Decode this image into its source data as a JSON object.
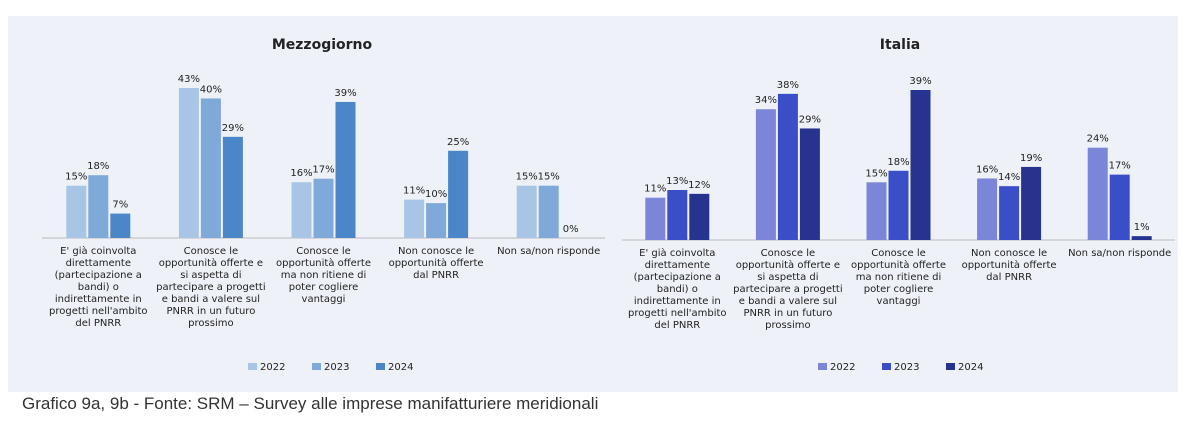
{
  "chart_data": [
    {
      "type": "bar",
      "title": "Mezzogiorno",
      "categories": [
        "E' già coinvolta direttamente (partecipazione a bandi) o indirettamente in progetti nell'ambito del PNRR",
        "Conosce le opportunità offerte e si aspetta di partecipare a progetti e bandi a valere sul PNRR in un futuro prossimo",
        "Conosce le opportunità offerte ma non ritiene di poter cogliere vantaggi",
        "Non conosce le opportunità offerte dal PNRR",
        "Non sa/non risponde"
      ],
      "series": [
        {
          "name": "2022",
          "color": "#a9c5e6",
          "values": [
            15,
            43,
            16,
            11,
            15
          ],
          "value_labels": [
            "15%",
            "43%",
            "16%",
            "11%",
            "15%"
          ]
        },
        {
          "name": "2023",
          "color": "#7ea9d9",
          "values": [
            18,
            40,
            17,
            10,
            15
          ],
          "value_labels": [
            "18%",
            "40%",
            "17%",
            "10%",
            "15%"
          ]
        },
        {
          "name": "2024",
          "color": "#4a86c8",
          "values": [
            7,
            29,
            39,
            25,
            0
          ],
          "value_labels": [
            "7%",
            "29%",
            "39%",
            "25%",
            "0%"
          ]
        }
      ]
    },
    {
      "type": "bar",
      "title": "Italia",
      "categories": [
        "E' già coinvolta direttamente (partecipazione a bandi) o indirettamente in progetti nell'ambito del PNRR",
        "Conosce le opportunità offerte e si aspetta di partecipare a progetti e bandi a valere sul PNRR in un futuro prossimo",
        "Conosce le opportunità offerte ma non ritiene di poter cogliere vantaggi",
        "Non conosce le opportunità offerte dal PNRR",
        "Non sa/non risponde"
      ],
      "series": [
        {
          "name": "2022",
          "color": "#7b86d9",
          "values": [
            11,
            34,
            15,
            16,
            24
          ],
          "value_labels": [
            "11%",
            "34%",
            "15%",
            "16%",
            "24%"
          ]
        },
        {
          "name": "2023",
          "color": "#3a4ec7",
          "values": [
            13,
            38,
            18,
            14,
            17
          ],
          "value_labels": [
            "13%",
            "38%",
            "18%",
            "14%",
            "17%"
          ]
        },
        {
          "name": "2024",
          "color": "#26338f",
          "values": [
            12,
            29,
            39,
            19,
            1
          ],
          "value_labels": [
            "12%",
            "29%",
            "39%",
            "19%",
            "1%"
          ]
        }
      ]
    }
  ],
  "caption": "Grafico 9a, 9b - Fonte: SRM – Survey alle imprese manifatturiere meridionali"
}
